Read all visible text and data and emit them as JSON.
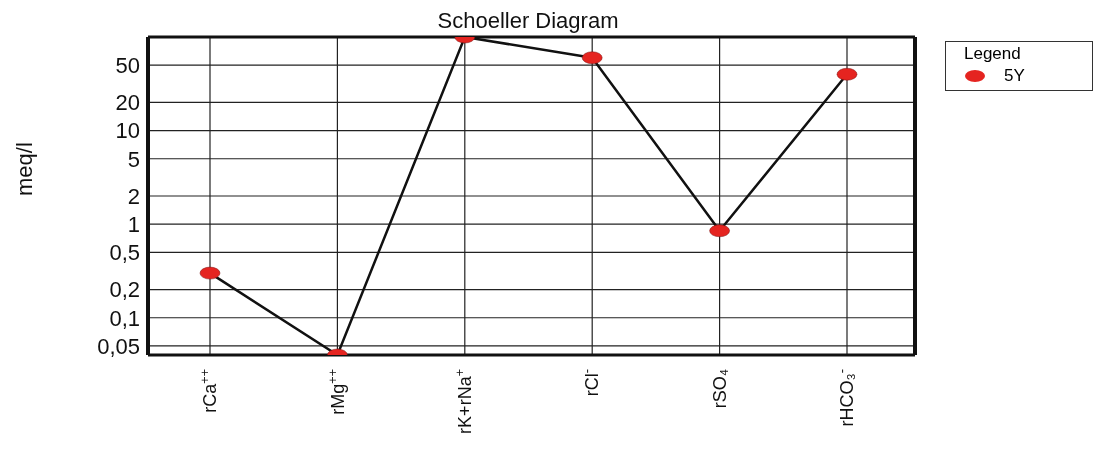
{
  "chart_data": {
    "type": "line",
    "title": "Schoeller Diagram",
    "ylabel": "meq/l",
    "legend_title": "Legend",
    "categories": [
      "rCa$^{++}$",
      "rMg$^{++}$",
      "rK+rNa$^{+}$",
      "rCl$^{-}$",
      "rSO₄",
      "rHCO₃$^{-}$"
    ],
    "series": [
      {
        "name": "5Y",
        "color": "#e52420",
        "values": [
          0.3,
          0.04,
          100,
          60,
          0.85,
          40
        ]
      }
    ],
    "log": true,
    "ylim": [
      0.04,
      100
    ],
    "yticks": [
      {
        "value": 0.05,
        "label": "0,05"
      },
      {
        "value": 0.1,
        "label": "0,1"
      },
      {
        "value": 0.2,
        "label": "0,2"
      },
      {
        "value": 0.5,
        "label": "0,5"
      },
      1,
      2,
      5,
      10,
      20,
      50
    ],
    "grid": true,
    "legend": "top right",
    "marker": "circle",
    "line_style": "solid"
  }
}
